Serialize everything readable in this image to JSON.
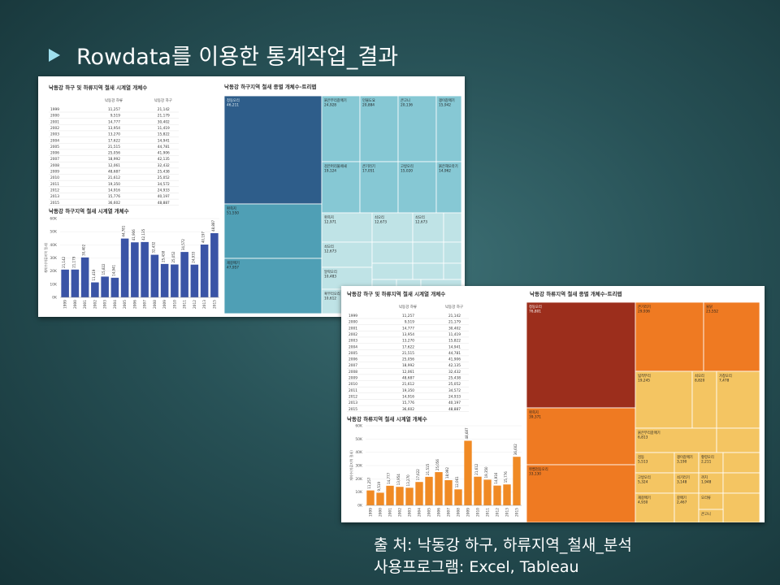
{
  "slide": {
    "title": "Rowdata를 이용한 통계작업_결과",
    "source_line": "출 처:  낙동강 하구, 하류지역_철새_분석",
    "program_line": "사용프로그램: Excel, Tableau"
  },
  "colors": {
    "accent": "#9fe0ee",
    "bar_blue": "#3a54a6",
    "bar_orange": "#f08a24"
  },
  "table_headers": [
    "낙동강 하류",
    "낙동강 하구"
  ],
  "table_rows": [
    [
      "1999",
      "11,257",
      "21,142"
    ],
    [
      "2000",
      "9,519",
      "21,179"
    ],
    [
      "2001",
      "14,777",
      "30,402"
    ],
    [
      "2002",
      "13,954",
      "11,419"
    ],
    [
      "2003",
      "13,270",
      "15,822"
    ],
    [
      "2004",
      "17,622",
      "14,941"
    ],
    [
      "2005",
      "21,515",
      "44,781"
    ],
    [
      "2006",
      "25,056",
      "41,906"
    ],
    [
      "2007",
      "18,992",
      "42,135"
    ],
    [
      "2008",
      "12,061",
      "32,432"
    ],
    [
      "2009",
      "48,687",
      "25,438"
    ],
    [
      "2010",
      "21,612",
      "25,052"
    ],
    [
      "2011",
      "19,350",
      "34,572"
    ],
    [
      "2012",
      "14,916",
      "24,933"
    ],
    [
      "2013",
      "15,776",
      "40,197"
    ],
    [
      "2015",
      "36,602",
      "48,887"
    ]
  ],
  "chart_data": [
    {
      "type": "table",
      "title": "낙동강 하구 및 하류지역 철새 시계열 개체수",
      "columns": [
        "",
        "낙동강 하류",
        "낙동강 하구"
      ]
    },
    {
      "type": "bar",
      "title": "낙동강 하구지역 철새 시계열 개체수",
      "ylabel": "개체수(하류지역 철새)",
      "categories": [
        "1999",
        "2000",
        "2001",
        "2002",
        "2003",
        "2004",
        "2005",
        "2006",
        "2007",
        "2008",
        "2009",
        "2010",
        "2011",
        "2012",
        "2013",
        "2015"
      ],
      "values": [
        21142,
        21179,
        30402,
        11419,
        15822,
        14941,
        44781,
        41906,
        42135,
        32432,
        25438,
        25052,
        34572,
        24933,
        40197,
        48887
      ],
      "value_labels": [
        "21,142",
        "21,179",
        "30,402",
        "11,419",
        "15,822",
        "14,941",
        "44,781",
        "41,906",
        "42,135",
        "32,432",
        "25,438",
        "25,052",
        "34,572",
        "24,933",
        "40,197",
        "48,887"
      ],
      "ylim": [
        0,
        60000
      ],
      "yticks": [
        0,
        10000,
        20000,
        30000,
        40000,
        50000,
        60000
      ],
      "ytick_labels": [
        "0K",
        "10K",
        "20K",
        "30K",
        "40K",
        "50K",
        "60K"
      ]
    },
    {
      "type": "treemap",
      "title": "낙동강 하구지역 철새 종별 개체수-트리맵",
      "items": [
        {
          "name": "청둥오리",
          "value": "46,211"
        },
        {
          "name": "흰죽지",
          "value": "51,550"
        },
        {
          "name": "재갈매기",
          "value": "47,957"
        },
        {
          "name": "붉은부리갈매기",
          "value": "24,928"
        },
        {
          "name": "민물도요",
          "value": "20,884"
        },
        {
          "name": "큰고니",
          "value": "20,136"
        },
        {
          "name": "괭이갈매기",
          "value": "15,942"
        },
        {
          "name": "검은머리물떼새",
          "value": "19,124"
        },
        {
          "name": "큰기러기",
          "value": "17,051"
        },
        {
          "name": "고방오리",
          "value": "15,020"
        },
        {
          "name": "붉은해오라기",
          "value": "14,962"
        },
        {
          "name": "흰죽지",
          "value": "12,971"
        },
        {
          "name": "쇠오리",
          "value": "12,673"
        },
        {
          "name": "알락오리",
          "value": "10,483"
        },
        {
          "name": "혹부리오리",
          "value": "10,612"
        }
      ]
    },
    {
      "type": "table",
      "title": "낙동강 하구 및 하류지역 철새 시계열 개체수",
      "columns": [
        "",
        "낙동강 하류",
        "낙동강 하구"
      ]
    },
    {
      "type": "bar",
      "title": "낙동강 하류지역 철새 시계열 개체수",
      "ylabel": "개체수(하류지역 철새)",
      "categories": [
        "1999",
        "2000",
        "2001",
        "2002",
        "2003",
        "2004",
        "2005",
        "2006",
        "2007",
        "2008",
        "2009",
        "2010",
        "2011",
        "2012",
        "2013",
        "2015"
      ],
      "values": [
        11257,
        9519,
        14777,
        13954,
        13270,
        17622,
        21515,
        25056,
        18992,
        12061,
        48687,
        21612,
        19350,
        14916,
        15776,
        36602
      ],
      "value_labels": [
        "11,257",
        "9,519",
        "14,777",
        "13,954",
        "13,270",
        "17,622",
        "21,515",
        "25,056",
        "18,992",
        "12,061",
        "48,687",
        "21,612",
        "19,350",
        "14,916",
        "15,776",
        "36,602"
      ],
      "ylim": [
        0,
        60000
      ],
      "yticks": [
        0,
        10000,
        20000,
        30000,
        40000,
        50000,
        60000
      ],
      "ytick_labels": [
        "0K",
        "10K",
        "20K",
        "30K",
        "40K",
        "50K",
        "60K"
      ]
    },
    {
      "type": "treemap",
      "title": "낙동강 하류지역 철새 종별 개체수-트리맵",
      "items": [
        {
          "name": "청둥오리",
          "value": "76,801"
        },
        {
          "name": "큰기러기",
          "value": "29,936"
        },
        {
          "name": "물닭",
          "value": "23,552"
        },
        {
          "name": "넓적부리",
          "value": "19,245"
        },
        {
          "name": "쇠오리",
          "value": "8,820"
        },
        {
          "name": "가창오리",
          "value": "7,478"
        },
        {
          "name": "흰죽지",
          "value": "39,371"
        },
        {
          "name": "흰뺨검둥오리",
          "value": "33,130"
        },
        {
          "name": "붉은부리갈매기",
          "value": "6,813"
        },
        {
          "name": "검둥",
          "value": "5,513"
        },
        {
          "name": "괭이갈매기",
          "value": "3,190"
        },
        {
          "name": "황령오리",
          "value": "2,211"
        },
        {
          "name": "고방오리",
          "value": "5,324"
        },
        {
          "name": "쇠기러기",
          "value": "3,148"
        },
        {
          "name": "까치",
          "value": "1,948"
        },
        {
          "name": "재갈매기",
          "value": "4,930"
        },
        {
          "name": "갈매기",
          "value": "2,467"
        },
        {
          "name": "오리류",
          "value": ""
        },
        {
          "name": "큰고니",
          "value": ""
        }
      ]
    }
  ]
}
